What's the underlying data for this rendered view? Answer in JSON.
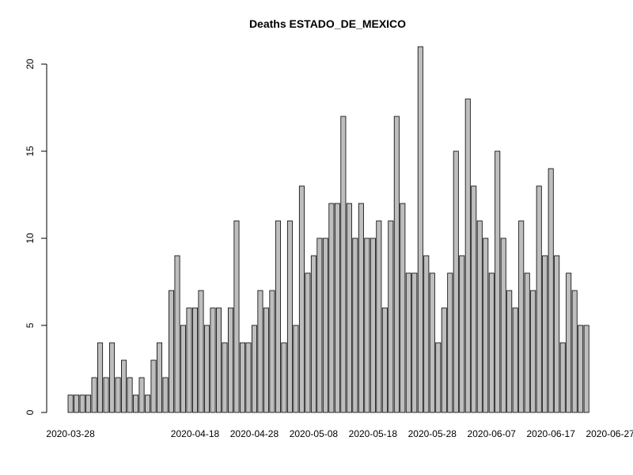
{
  "chart_data": {
    "type": "bar",
    "title": "Deaths ESTADO_DE_MEXICO",
    "xlabel": "",
    "ylabel": "",
    "start_date": "2020-03-28",
    "x_tick_labels": [
      "2020-03-28",
      "2020-04-18",
      "2020-04-28",
      "2020-05-08",
      "2020-05-18",
      "2020-05-28",
      "2020-06-07",
      "2020-06-17",
      "2020-06-27"
    ],
    "y_ticks": [
      0,
      5,
      10,
      15,
      20
    ],
    "ylim": [
      0,
      21
    ],
    "values": [
      1,
      1,
      1,
      1,
      2,
      4,
      2,
      4,
      2,
      3,
      2,
      1,
      2,
      1,
      3,
      4,
      2,
      7,
      9,
      5,
      6,
      6,
      7,
      5,
      6,
      6,
      4,
      6,
      11,
      4,
      4,
      5,
      7,
      6,
      7,
      11,
      4,
      11,
      5,
      13,
      8,
      9,
      10,
      10,
      12,
      12,
      17,
      12,
      10,
      12,
      10,
      10,
      11,
      6,
      11,
      17,
      12,
      8,
      8,
      21,
      9,
      8,
      4,
      6,
      8,
      15,
      9,
      18,
      13,
      11,
      10,
      8,
      15,
      10,
      7,
      6,
      11,
      8,
      7,
      13,
      9,
      14,
      9,
      4,
      8,
      7,
      5,
      5
    ]
  }
}
